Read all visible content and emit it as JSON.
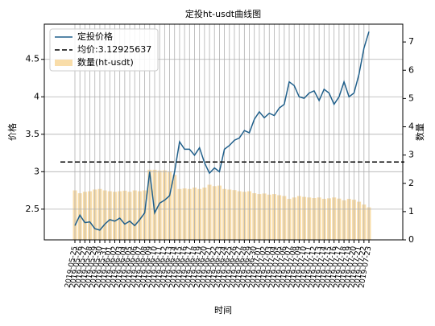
{
  "chart_data": {
    "type": "bar-line",
    "title": "定投ht-usdt曲线图",
    "x_label": "时间",
    "y_label": "价格",
    "y2_label": "数量",
    "categories": [
      "2019-05-25",
      "2019-05-26",
      "2019-05-27",
      "2019-05-28",
      "2019-05-29",
      "2019-05-30",
      "2019-05-31",
      "2019-06-01",
      "2019-06-02",
      "2019-06-03",
      "2019-06-04",
      "2019-06-05",
      "2019-06-06",
      "2019-06-07",
      "2019-06-08",
      "2019-06-09",
      "2019-06-10",
      "2019-06-11",
      "2019-06-12",
      "2019-06-13",
      "2019-06-14",
      "2019-06-15",
      "2019-06-16",
      "2019-06-17",
      "2019-06-18",
      "2019-06-19",
      "2019-06-20",
      "2019-06-21",
      "2019-06-22",
      "2019-06-23",
      "2019-06-24",
      "2019-06-25",
      "2019-06-26",
      "2019-06-27",
      "2019-06-28",
      "2019-06-29",
      "2019-06-30",
      "2019-07-01",
      "2019-07-02",
      "2019-07-03",
      "2019-07-04",
      "2019-07-05",
      "2019-07-06",
      "2019-07-07",
      "2019-07-08",
      "2019-07-09",
      "2019-07-10",
      "2019-07-11",
      "2019-07-12",
      "2019-07-13",
      "2019-07-14",
      "2019-07-15",
      "2019-07-16",
      "2019-07-17",
      "2019-07-18",
      "2019-07-19",
      "2019-07-20",
      "2019-07-21",
      "2019-07-22",
      "2019-07-23"
    ],
    "series": [
      {
        "name": "定投价格",
        "color": "#1f5f8b",
        "kind": "line",
        "values": [
          2.28,
          2.42,
          2.32,
          2.33,
          2.24,
          2.22,
          2.3,
          2.36,
          2.34,
          2.38,
          2.3,
          2.34,
          2.28,
          2.36,
          2.45,
          3.0,
          2.45,
          2.58,
          2.62,
          2.68,
          3.0,
          3.4,
          3.3,
          3.3,
          3.22,
          3.32,
          3.12,
          2.98,
          3.05,
          3.0,
          3.3,
          3.35,
          3.42,
          3.45,
          3.55,
          3.52,
          3.7,
          3.8,
          3.72,
          3.78,
          3.75,
          3.85,
          3.9,
          4.2,
          4.15,
          4.0,
          3.98,
          4.05,
          4.08,
          3.95,
          4.1,
          4.05,
          3.9,
          4.0,
          4.2,
          4.0,
          4.05,
          4.3,
          4.65,
          4.87
        ]
      },
      {
        "name": "均价:3.12925637",
        "color": "#000000",
        "kind": "hline",
        "value": 3.12925637
      },
      {
        "name": "数量(ht-usdt)",
        "color": "#f5c770",
        "kind": "bar",
        "axis": "y2",
        "values": [
          1.75,
          1.65,
          1.7,
          1.72,
          1.78,
          1.8,
          1.75,
          1.72,
          1.7,
          1.72,
          1.74,
          1.7,
          1.75,
          1.72,
          1.75,
          2.48,
          2.48,
          2.45,
          2.46,
          2.42,
          2.3,
          1.8,
          1.82,
          1.8,
          1.85,
          1.8,
          1.85,
          1.95,
          1.9,
          1.92,
          1.8,
          1.78,
          1.76,
          1.72,
          1.7,
          1.72,
          1.65,
          1.62,
          1.64,
          1.6,
          1.62,
          1.58,
          1.55,
          1.45,
          1.5,
          1.55,
          1.52,
          1.5,
          1.48,
          1.5,
          1.45,
          1.47,
          1.5,
          1.46,
          1.4,
          1.45,
          1.42,
          1.35,
          1.25,
          1.15
        ]
      }
    ],
    "ylim": [
      2.09,
      4.97
    ],
    "yticks": [
      2.5,
      3.0,
      3.5,
      4.0,
      4.5
    ],
    "y2lim": [
      0,
      7.63
    ],
    "y2ticks": [
      0,
      1,
      2,
      3,
      4,
      5,
      6,
      7
    ],
    "grid": true,
    "legend": "upper left"
  }
}
